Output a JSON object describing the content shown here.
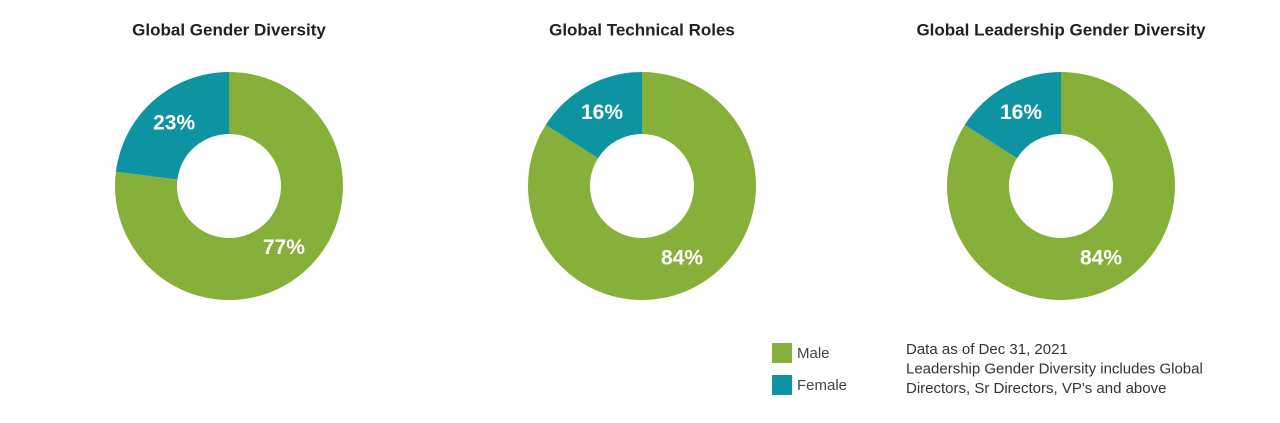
{
  "chart_data": [
    {
      "type": "pie",
      "title": "Global Gender Diversity",
      "categories": [
        "Male",
        "Female"
      ],
      "values": [
        77,
        23
      ],
      "value_labels": [
        "77%",
        "23%"
      ],
      "colors": [
        "#86b03a",
        "#0e93a3"
      ],
      "donut": true
    },
    {
      "type": "pie",
      "title": "Global Technical Roles",
      "categories": [
        "Male",
        "Female"
      ],
      "values": [
        84,
        16
      ],
      "value_labels": [
        "84%",
        "16%"
      ],
      "colors": [
        "#86b03a",
        "#0e93a3"
      ],
      "donut": true
    },
    {
      "type": "pie",
      "title": "Global Leadership Gender Diversity",
      "categories": [
        "Male",
        "Female"
      ],
      "values": [
        84,
        16
      ],
      "value_labels": [
        "84%",
        "16%"
      ],
      "colors": [
        "#86b03a",
        "#0e93a3"
      ],
      "donut": true
    }
  ],
  "note": [
    "Data as of Dec 31, 2021",
    "Leadership Gender Diversity includes Global",
    "Directors, Sr Directors, VP's and above"
  ]
}
